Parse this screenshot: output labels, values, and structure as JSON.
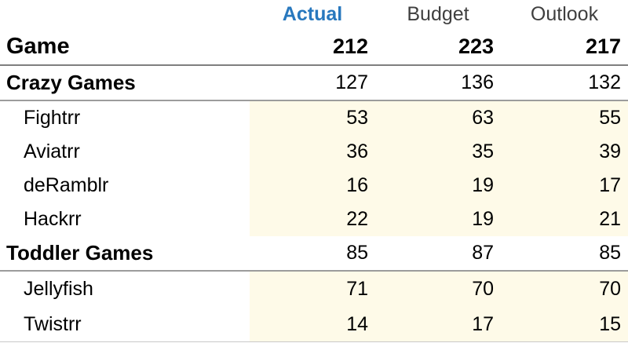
{
  "table": {
    "column_headers": [
      {
        "label": "Actual",
        "state": "active"
      },
      {
        "label": "Budget",
        "state": "default"
      },
      {
        "label": "Outlook",
        "state": "default"
      }
    ],
    "total_row": {
      "label": "Game",
      "values": [
        "212",
        "223",
        "217"
      ]
    },
    "rows": [
      {
        "label": "Crazy Games",
        "type": "group",
        "values": [
          "127",
          "136",
          "132"
        ]
      },
      {
        "label": "Fightrr",
        "type": "detail",
        "values": [
          "53",
          "63",
          "55"
        ]
      },
      {
        "label": "Aviatrr",
        "type": "detail",
        "values": [
          "36",
          "35",
          "39"
        ]
      },
      {
        "label": "deRamblr",
        "type": "detail",
        "values": [
          "16",
          "19",
          "17"
        ]
      },
      {
        "label": "Hackrr",
        "type": "detail",
        "values": [
          "22",
          "19",
          "21"
        ]
      },
      {
        "label": "Toddler Games",
        "type": "group",
        "values": [
          "85",
          "87",
          "85"
        ]
      },
      {
        "label": "Jellyfish",
        "type": "detail",
        "values": [
          "71",
          "70",
          "70"
        ]
      },
      {
        "label": "Twistrr",
        "type": "detail",
        "values": [
          "14",
          "17",
          "15"
        ]
      }
    ],
    "colors": {
      "active_header_blue": "#2878be",
      "header_gray": "#3f3f3f",
      "detail_row_highlight": "#fefae8",
      "heavy_rule_gray": "#7f7f7f",
      "light_rule_gray": "#9c9c9c"
    }
  }
}
